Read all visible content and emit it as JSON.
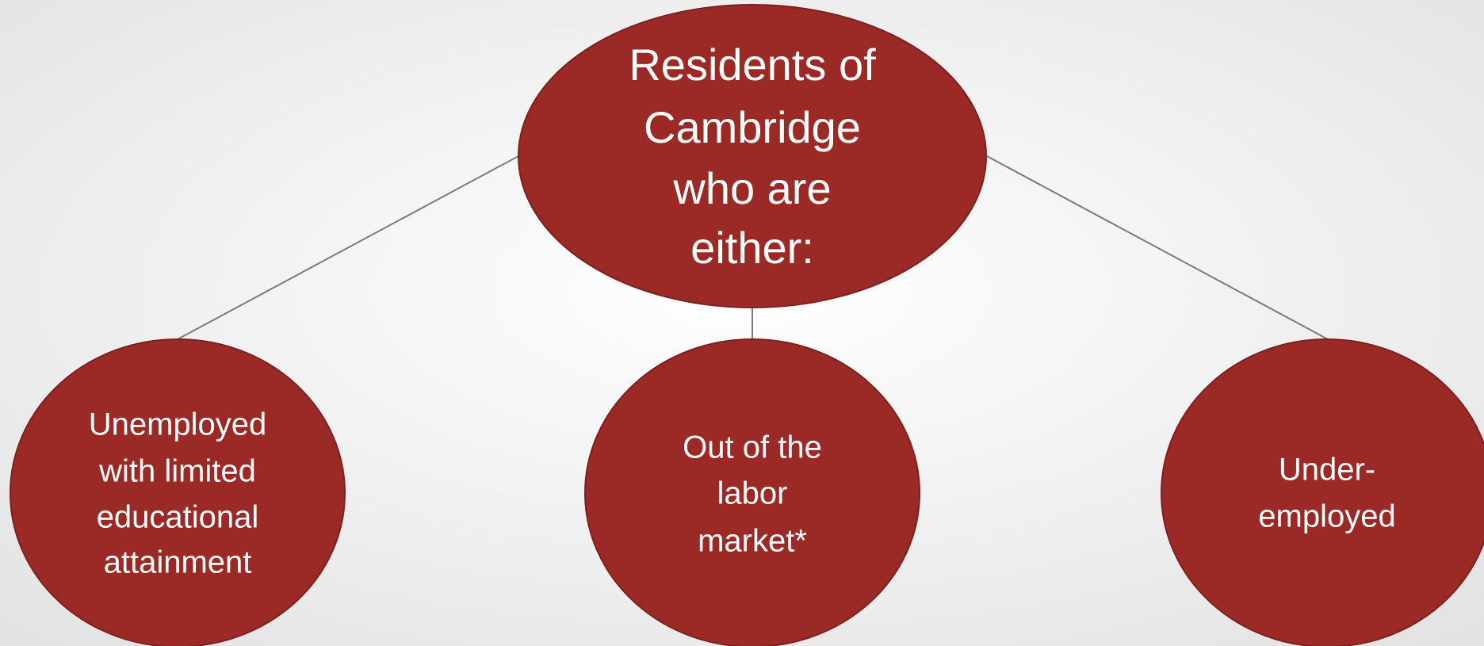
{
  "nodes": [
    {
      "lines": [
        "Residents of",
        "Cambridge",
        "who are",
        "either:"
      ]
    },
    {
      "lines": [
        "Unemployed",
        "with limited",
        "educational",
        "attainment"
      ]
    },
    {
      "lines": [
        "Out of the",
        "labor",
        "market*"
      ]
    },
    {
      "lines": [
        "Under-",
        "employed"
      ]
    }
  ]
}
